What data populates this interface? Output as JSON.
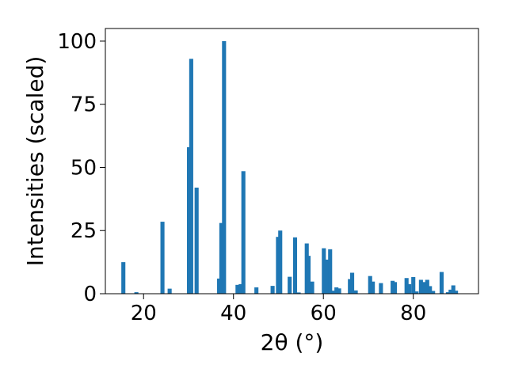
{
  "chart_data": {
    "type": "bar",
    "xlabel": "2θ (°)",
    "ylabel": "Intensities (scaled)",
    "xlim": [
      11.5,
      94.5
    ],
    "ylim": [
      0,
      105
    ],
    "x_ticks": [
      20,
      40,
      60,
      80
    ],
    "y_ticks": [
      0,
      25,
      50,
      75,
      100
    ],
    "grid": false,
    "bar_color": "#1f77b4",
    "bar_width": 0.9,
    "x": [
      15.5,
      18.4,
      24.2,
      25.8,
      30.1,
      30.6,
      31.8,
      36.8,
      37.3,
      37.9,
      40.9,
      41.6,
      42.2,
      45.1,
      48.7,
      49.9,
      50.4,
      52.5,
      53.7,
      54.5,
      56.3,
      56.7,
      57.5,
      60.1,
      60.8,
      61.5,
      62.3,
      62.9,
      63.5,
      65.9,
      66.4,
      67.2,
      70.4,
      71.0,
      72.8,
      75.4,
      75.9,
      78.5,
      79.1,
      80.0,
      80.7,
      81.7,
      82.5,
      83.1,
      83.7,
      84.4,
      86.3,
      87.7,
      88.3,
      88.9,
      89.5
    ],
    "values": [
      12.5,
      0.6,
      28.5,
      2.0,
      58,
      93,
      42,
      6,
      28,
      100,
      3.5,
      3.8,
      48.5,
      2.5,
      3.1,
      22.5,
      25,
      6.7,
      22.3,
      0.5,
      19.9,
      15,
      4.8,
      18,
      13.5,
      17.6,
      1.2,
      2.5,
      2.1,
      5.8,
      8.3,
      1.3,
      7,
      4.8,
      4.2,
      5.1,
      4.6,
      6.2,
      3.8,
      6.6,
      0.9,
      5.5,
      4.6,
      5.5,
      3.0,
      1.1,
      8.6,
      0.6,
      1.6,
      3.3,
      1.2
    ]
  }
}
